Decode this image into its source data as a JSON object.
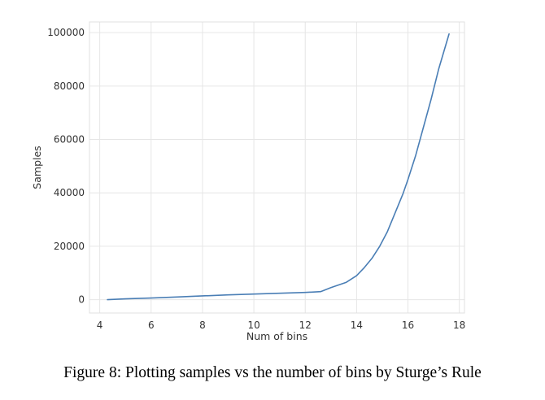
{
  "figure": {
    "caption": "Figure 8: Plotting samples vs the number of bins by Sturge’s Rule"
  },
  "chart_data": {
    "type": "line",
    "title": "",
    "xlabel": "Num of bins",
    "ylabel": "Samples",
    "xlim": [
      3.6,
      18.2
    ],
    "ylim": [
      -5000,
      104000
    ],
    "grid": true,
    "legend": "none",
    "xticks": [
      4,
      6,
      8,
      10,
      12,
      14,
      16,
      18
    ],
    "yticks": [
      0,
      20000,
      40000,
      60000,
      80000,
      100000
    ],
    "colors": {
      "line": "#4a7eb5",
      "grid": "#e6e6e6",
      "spine": "#e0e0e0"
    },
    "series": [
      {
        "values_note": "",
        "x": [
          4.3,
          5.0,
          6.0,
          7.0,
          8.0,
          9.0,
          10.0,
          11.0,
          12.0,
          12.6,
          13.0,
          13.6,
          14.0,
          14.3,
          14.6,
          14.9,
          15.2,
          15.5,
          15.8,
          16.0,
          16.3,
          16.6,
          16.9,
          17.2,
          17.6
        ],
        "y": [
          0,
          300,
          600,
          1000,
          1400,
          1800,
          2100,
          2400,
          2700,
          3000,
          4500,
          6500,
          9000,
          12000,
          15500,
          20000,
          25500,
          32500,
          39500,
          45000,
          54000,
          64500,
          75000,
          86500,
          99500
        ]
      }
    ]
  }
}
